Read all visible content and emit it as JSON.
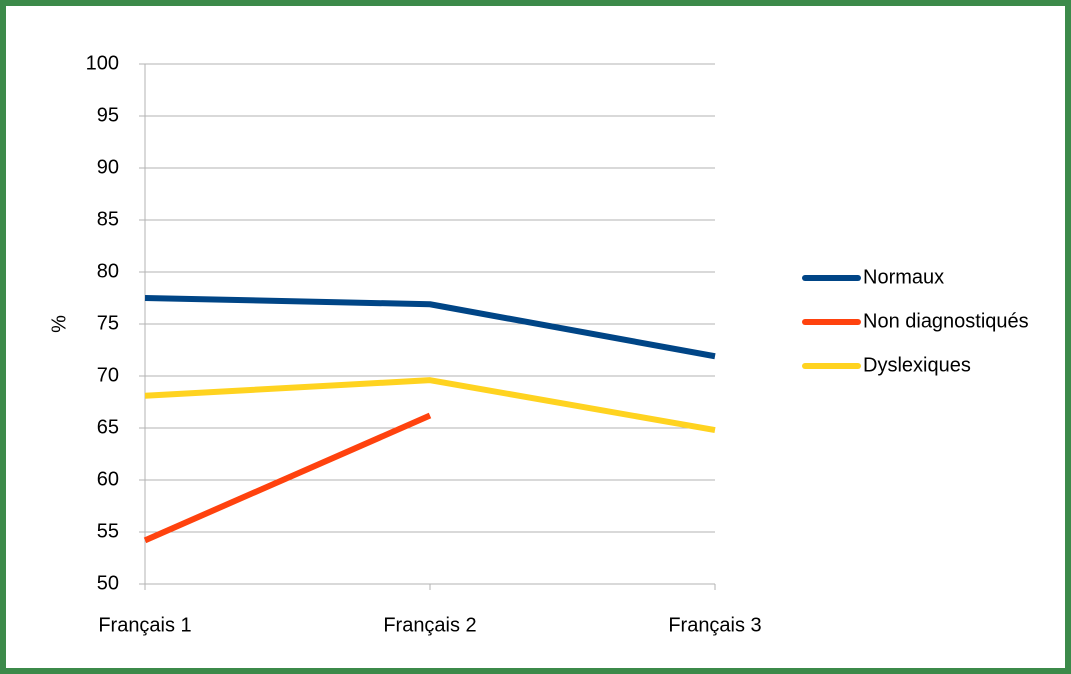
{
  "chart_data": {
    "type": "line",
    "ylabel": "%",
    "categories": [
      "Français 1",
      "Français 2",
      "Français 3"
    ],
    "series": [
      {
        "name": "Normaux",
        "color": "#004586",
        "values": [
          77.5,
          76.9,
          71.9
        ]
      },
      {
        "name": "Non diagnostiqués",
        "color": "#ff420e",
        "values": [
          54.2,
          66.2,
          null
        ]
      },
      {
        "name": "Dyslexiques",
        "color": "#ffd320",
        "values": [
          68.1,
          69.6,
          64.8
        ]
      }
    ],
    "ylim": [
      50,
      100
    ],
    "yticks": [
      50,
      55,
      60,
      65,
      70,
      75,
      80,
      85,
      90,
      95,
      100
    ],
    "grid": true,
    "legend": "right"
  }
}
